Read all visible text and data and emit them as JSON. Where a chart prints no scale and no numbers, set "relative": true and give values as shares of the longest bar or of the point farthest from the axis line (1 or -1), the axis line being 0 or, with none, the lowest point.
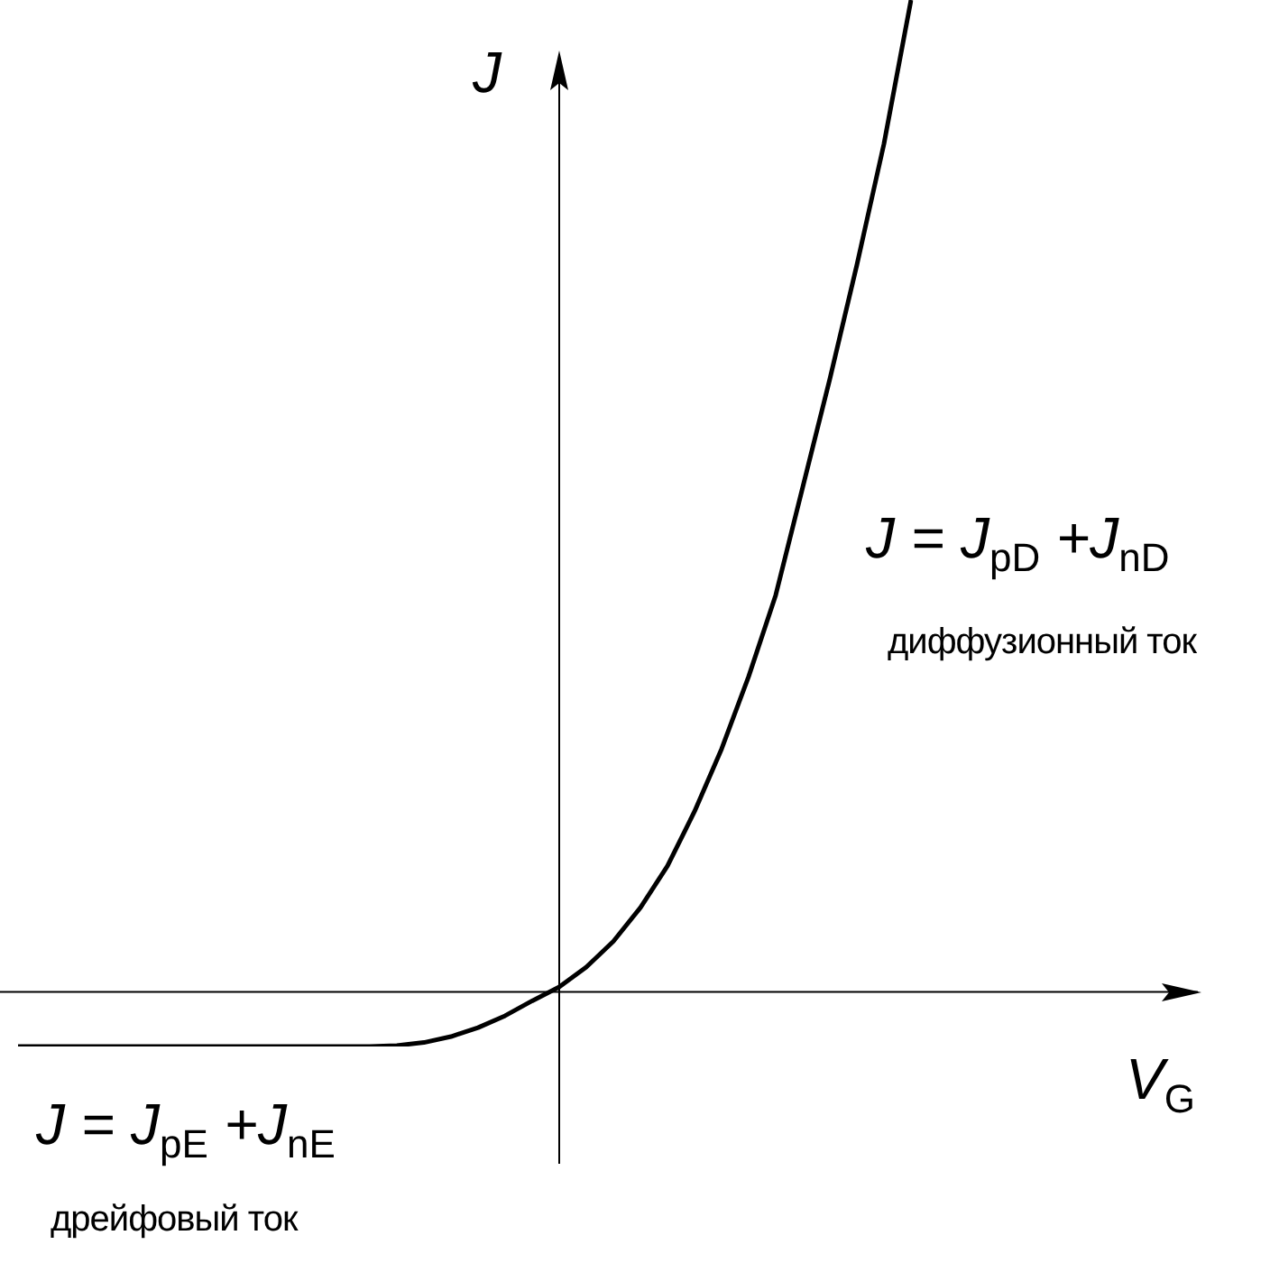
{
  "chart_data": {
    "type": "line",
    "relative": true,
    "color": "#000000",
    "xlabel": "V$_{G}$",
    "ylabel": "J",
    "annotations": [
      "J = J$_{pD}$ +J$_{nD}$",
      "диффузионный ток",
      "J = J$_{pE}$ +J$_{nE}$",
      "дрейфовый ток"
    ],
    "categories": [
      null,
      null,
      null,
      null,
      null,
      null,
      null,
      null,
      null,
      null,
      null,
      null,
      null,
      null,
      null,
      null,
      null,
      null,
      null,
      null,
      null,
      null,
      null,
      null,
      null,
      null,
      null,
      null,
      null,
      null,
      null,
      null,
      null,
      null
    ],
    "values": [
      -0.055,
      -0.055,
      -0.055,
      -0.055,
      -0.055,
      -0.055,
      -0.055,
      -0.055,
      -0.055,
      -0.055,
      -0.055,
      -0.055,
      -0.055,
      -0.055,
      -0.054,
      -0.051,
      -0.045,
      -0.036,
      -0.024,
      -0.009,
      0.005,
      0.025,
      0.051,
      0.085,
      0.127,
      0.182,
      0.245,
      0.318,
      0.4,
      0.509,
      0.618,
      0.733,
      0.855,
      1
    ]
  }
}
